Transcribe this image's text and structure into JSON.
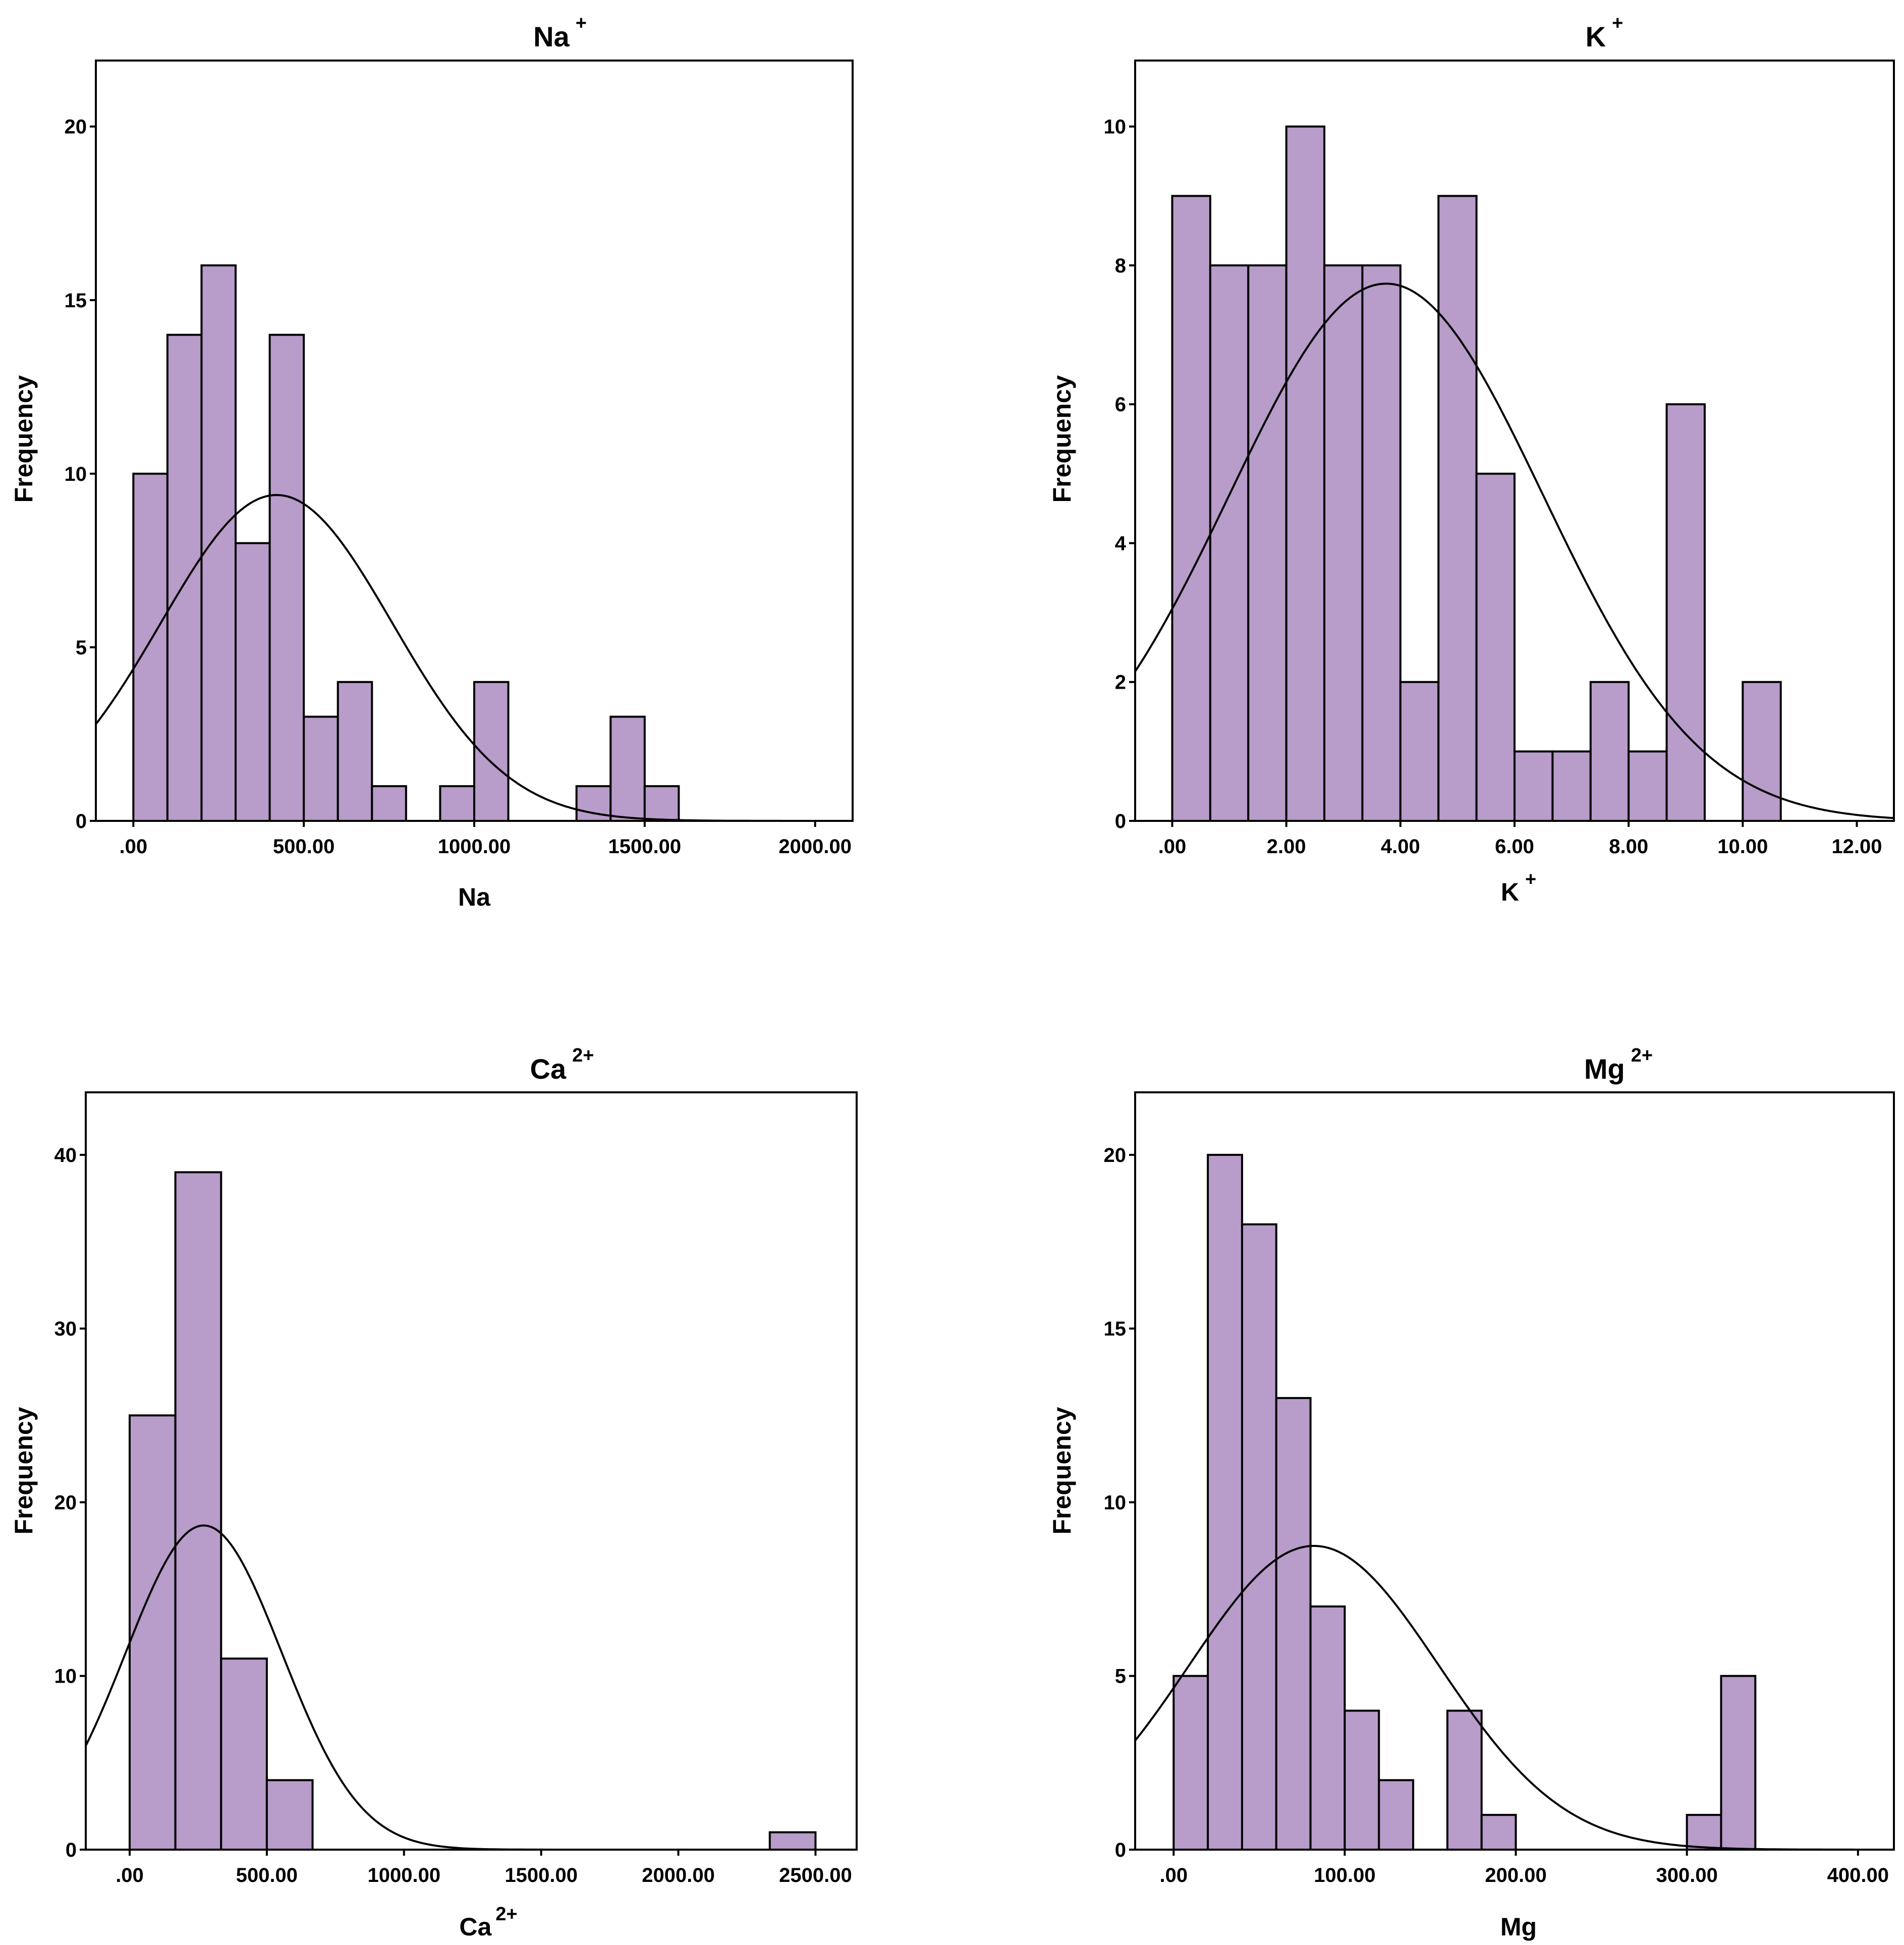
{
  "chart_data": [
    {
      "type": "bar",
      "title": "Na",
      "title_sup": "+",
      "xlabel": "Na",
      "xlabel_sup": "",
      "ylabel": "Frequency",
      "xlim": [
        -110,
        2110
      ],
      "ylim": [
        0,
        21.9
      ],
      "xticks": [
        0,
        500,
        1000,
        1500,
        2000
      ],
      "xtick_labels": [
        ".00",
        "500.00",
        "1000.00",
        "1500.00",
        "2000.00"
      ],
      "yticks": [
        0,
        5,
        10,
        15,
        20
      ],
      "ytick_labels": [
        "0",
        "5",
        "10",
        "15",
        "20"
      ],
      "bin_width": 100,
      "bin_starts": [
        0,
        100,
        200,
        300,
        400,
        500,
        600,
        700,
        900,
        1000,
        1300,
        1400,
        1500
      ],
      "values": [
        10,
        14,
        16,
        8,
        14,
        3,
        4,
        1,
        1,
        4,
        1,
        3,
        1
      ],
      "normal_curve": {
        "mean": 420,
        "sd": 340,
        "n": 80
      }
    },
    {
      "type": "bar",
      "title": "K",
      "title_sup": "+",
      "xlabel": "K",
      "xlabel_sup": "+",
      "ylabel": "Frequency",
      "xlim": [
        -0.65,
        12.65
      ],
      "ylim": [
        0,
        10.95
      ],
      "xticks": [
        0,
        2,
        4,
        6,
        8,
        10,
        12
      ],
      "xtick_labels": [
        ".00",
        "2.00",
        "4.00",
        "6.00",
        "8.00",
        "10.00",
        "12.00"
      ],
      "yticks": [
        0,
        2,
        4,
        6,
        8,
        10
      ],
      "ytick_labels": [
        "0",
        "2",
        "4",
        "6",
        "8",
        "10"
      ],
      "bin_width": 0.6667,
      "bin_starts": [
        0,
        0.6667,
        1.3333,
        2.0,
        2.6667,
        3.3333,
        4.0,
        4.6667,
        5.3333,
        6.0,
        6.6667,
        7.3333,
        8.0,
        8.6667,
        10.0
      ],
      "values": [
        9,
        8,
        8,
        10,
        8,
        8,
        2,
        9,
        5,
        1,
        1,
        2,
        1,
        6,
        2
      ],
      "normal_curve": {
        "mean": 3.75,
        "sd": 2.75,
        "n": 80
      }
    },
    {
      "type": "bar",
      "title": "Ca",
      "title_sup": "2+",
      "xlabel": "Ca",
      "xlabel_sup": "2+",
      "ylabel": "Frequency",
      "xlim": [
        -160,
        2650
      ],
      "ylim": [
        0,
        43.6
      ],
      "xticks": [
        0,
        500,
        1000,
        1500,
        2000,
        2500
      ],
      "xtick_labels": [
        ".00",
        "500.00",
        "1000.00",
        "1500.00",
        "2000.00",
        "2500.00"
      ],
      "yticks": [
        0,
        10,
        20,
        30,
        40
      ],
      "ytick_labels": [
        "0",
        "10",
        "20",
        "30",
        "40"
      ],
      "bin_width": 166.67,
      "bin_starts": [
        0,
        166.67,
        333.33,
        500,
        2333.33
      ],
      "values": [
        25,
        39,
        11,
        4,
        1
      ],
      "normal_curve": {
        "mean": 270,
        "sd": 285,
        "n": 80
      }
    },
    {
      "type": "bar",
      "title": "Mg",
      "title_sup": "2+",
      "xlabel": "Mg",
      "xlabel_sup": "",
      "ylabel": "Frequency",
      "xlim": [
        -22.5,
        421
      ],
      "ylim": [
        0,
        21.8
      ],
      "xticks": [
        0,
        100,
        200,
        300,
        400
      ],
      "xtick_labels": [
        ".00",
        "100.00",
        "200.00",
        "300.00",
        "400.00"
      ],
      "yticks": [
        0,
        5,
        10,
        15,
        20
      ],
      "ytick_labels": [
        "0",
        "5",
        "10",
        "15",
        "20"
      ],
      "bin_width": 20,
      "bin_starts": [
        0,
        20,
        40,
        60,
        80,
        100,
        120,
        160,
        180,
        300,
        320
      ],
      "values": [
        5,
        20,
        18,
        13,
        7,
        4,
        2,
        4,
        1,
        1,
        5
      ],
      "normal_curve": {
        "mean": 82,
        "sd": 73,
        "n": 80
      }
    }
  ]
}
